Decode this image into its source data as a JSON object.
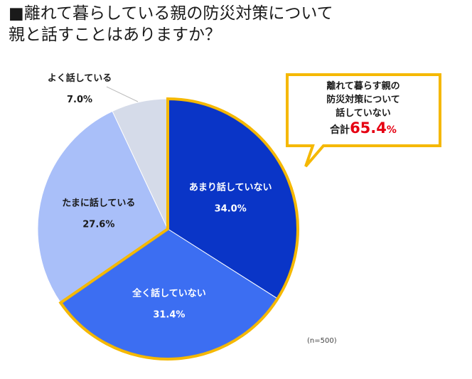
{
  "title_line1": "■離れて暮らしている親の防災対策について",
  "title_line2": "親と話すことはありますか？",
  "chart_data": {
    "type": "pie",
    "start": "top, clockwise",
    "slices": [
      {
        "label": "あまり話していない",
        "value": 34.0,
        "value_text": "34.0%",
        "color": "#0a35c7",
        "text_color": "light"
      },
      {
        "label": "全く話していない",
        "value": 31.4,
        "value_text": "31.4%",
        "color": "#3c6ef2",
        "text_color": "light"
      },
      {
        "label": "たまに話している",
        "value": 27.6,
        "value_text": "27.6%",
        "color": "#a9bff9",
        "text_color": "dark"
      },
      {
        "label": "よく話している",
        "value": 7.0,
        "value_text": "7.0%",
        "color": "#d5dbe9",
        "text_color": "dark"
      }
    ],
    "highlight_outline_color": "#f5b800"
  },
  "callout": {
    "lines": [
      "離れて暮らす親の",
      "防災対策について",
      "話していない"
    ],
    "total_label": "合計",
    "total_value": "65.4",
    "total_unit": "%",
    "border_color": "#f5b800"
  },
  "note": "(n=500)"
}
